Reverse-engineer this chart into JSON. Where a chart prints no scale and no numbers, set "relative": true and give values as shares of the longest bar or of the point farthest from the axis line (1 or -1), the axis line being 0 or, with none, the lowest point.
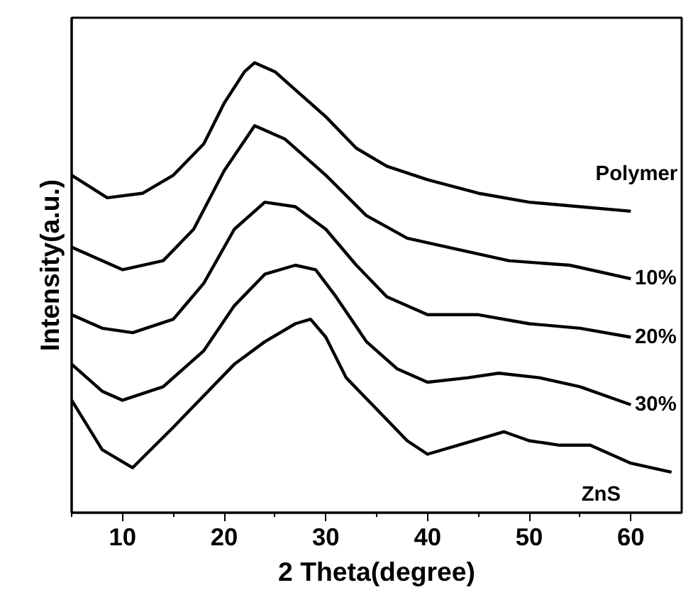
{
  "chart_data": {
    "type": "line",
    "relative": true,
    "xlabel": "2 Theta(degree)",
    "ylabel": "Intensity(a.u.)",
    "xlim": [
      5,
      65
    ],
    "xticks": [
      {
        "value": 5,
        "label": null
      },
      10,
      {
        "value": 15,
        "label": null
      },
      20,
      {
        "value": 25,
        "label": null
      },
      30,
      {
        "value": 35,
        "label": null
      },
      40,
      {
        "value": 45,
        "label": null
      },
      50,
      {
        "value": 55,
        "label": null
      },
      60
    ],
    "tick_labels": "x",
    "grid": false,
    "marker": "none",
    "line_style": "solid",
    "series": [
      {
        "name": "Polymer",
        "color": "#000000",
        "x": [
          5,
          8.5,
          12,
          15,
          18,
          20,
          22,
          23,
          25,
          27,
          30,
          33,
          36,
          40,
          45,
          50,
          55,
          60
        ],
        "values": [
          0.75,
          0.7,
          0.71,
          0.75,
          0.82,
          0.91,
          0.98,
          1.0,
          0.98,
          0.94,
          0.88,
          0.81,
          0.77,
          0.74,
          0.71,
          0.69,
          0.68,
          0.67
        ]
      },
      {
        "name": "10%",
        "color": "#000000",
        "x": [
          5,
          10,
          14,
          17,
          20,
          23,
          26,
          30,
          34,
          38,
          42,
          48,
          54,
          60
        ],
        "values": [
          0.59,
          0.54,
          0.56,
          0.63,
          0.76,
          0.86,
          0.83,
          0.75,
          0.66,
          0.61,
          0.59,
          0.56,
          0.55,
          0.52
        ]
      },
      {
        "name": "20%",
        "color": "#000000",
        "x": [
          5,
          8,
          11,
          15,
          18,
          21,
          24,
          27,
          30,
          33,
          36,
          40,
          45,
          50,
          55,
          60
        ],
        "values": [
          0.44,
          0.41,
          0.4,
          0.43,
          0.51,
          0.63,
          0.69,
          0.68,
          0.63,
          0.55,
          0.48,
          0.44,
          0.44,
          0.42,
          0.41,
          0.39
        ]
      },
      {
        "name": "30%",
        "color": "#000000",
        "x": [
          5,
          8,
          10,
          14,
          18,
          21,
          24,
          27,
          29,
          31,
          34,
          37,
          40,
          44,
          47,
          51,
          55,
          60
        ],
        "values": [
          0.33,
          0.27,
          0.25,
          0.28,
          0.36,
          0.46,
          0.53,
          0.55,
          0.54,
          0.48,
          0.38,
          0.32,
          0.29,
          0.3,
          0.31,
          0.3,
          0.28,
          0.24
        ]
      },
      {
        "name": "ZnS",
        "color": "#000000",
        "x": [
          5,
          8,
          11,
          15,
          18,
          21,
          24,
          27,
          28.5,
          30,
          32,
          35,
          38,
          40,
          43,
          47.5,
          50,
          53,
          56,
          60,
          64
        ],
        "values": [
          0.25,
          0.14,
          0.1,
          0.19,
          0.26,
          0.33,
          0.38,
          0.42,
          0.43,
          0.39,
          0.3,
          0.23,
          0.16,
          0.13,
          0.15,
          0.18,
          0.16,
          0.15,
          0.15,
          0.11,
          0.09
        ]
      }
    ]
  }
}
